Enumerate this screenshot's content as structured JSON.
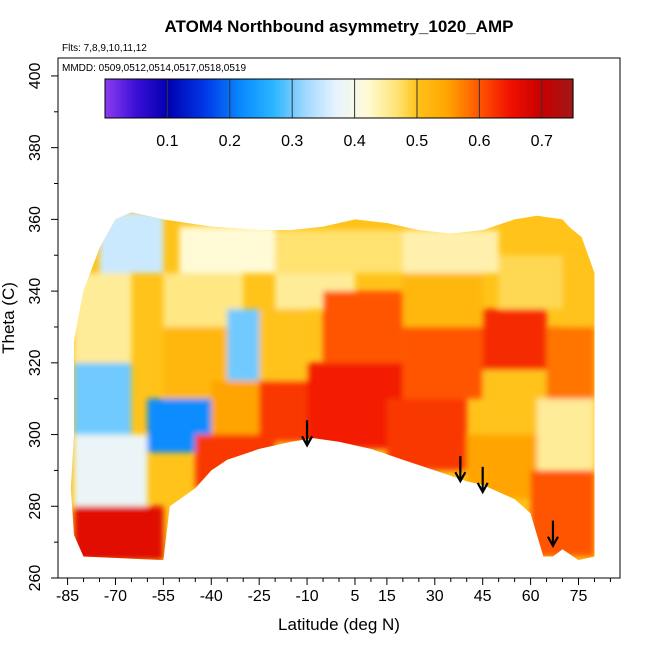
{
  "chart_data": {
    "type": "heatmap",
    "title": "ATOM4 Northbound asymmetry_1020_AMP",
    "flights_note": "Flts: 7,8,9,10,11,12",
    "dates_note": "MMDD: 0509,0512,0514,0517,0518,0519",
    "xlabel": "Latitude (deg N)",
    "ylabel": "Theta (C)",
    "xlim": [
      -88,
      88
    ],
    "ylim": [
      260,
      405
    ],
    "x_ticks": [
      -85,
      -70,
      -55,
      -40,
      -25,
      -10,
      5,
      15,
      30,
      45,
      60,
      75
    ],
    "x_tick_labels": [
      "-85",
      "-70",
      "-55",
      "-40",
      "-25",
      "-10",
      "5",
      "15",
      "30",
      "45",
      "60",
      "75"
    ],
    "y_ticks": [
      260,
      280,
      300,
      320,
      340,
      360,
      380,
      400
    ],
    "y_tick_labels": [
      "260",
      "280",
      "300",
      "320",
      "340",
      "360",
      "380",
      "400"
    ],
    "colorbar": {
      "range": [
        0,
        0.75
      ],
      "ticks": [
        0.1,
        0.2,
        0.3,
        0.4,
        0.5,
        0.6,
        0.7
      ],
      "tick_labels": [
        "0.1",
        "0.2",
        "0.3",
        "0.4",
        "0.5",
        "0.6",
        "0.7"
      ],
      "dividers": [
        0.1,
        0.2,
        0.3,
        0.4,
        0.5,
        0.6,
        0.7
      ],
      "stops": [
        {
          "v": 0.0,
          "color": "#8c3cf0"
        },
        {
          "v": 0.05,
          "color": "#3b0fd6"
        },
        {
          "v": 0.1,
          "color": "#0000b0"
        },
        {
          "v": 0.16,
          "color": "#0038e8"
        },
        {
          "v": 0.22,
          "color": "#0a8cff"
        },
        {
          "v": 0.27,
          "color": "#2ab5ff"
        },
        {
          "v": 0.32,
          "color": "#9fd8ff"
        },
        {
          "v": 0.37,
          "color": "#e6f4ff"
        },
        {
          "v": 0.42,
          "color": "#fffbd6"
        },
        {
          "v": 0.47,
          "color": "#ffe270"
        },
        {
          "v": 0.5,
          "color": "#ffc31a"
        },
        {
          "v": 0.55,
          "color": "#ffa400"
        },
        {
          "v": 0.6,
          "color": "#ff5500"
        },
        {
          "v": 0.65,
          "color": "#f01000"
        },
        {
          "v": 0.7,
          "color": "#c80000"
        },
        {
          "v": 0.75,
          "color": "#a01818"
        }
      ]
    },
    "domain_outline": {
      "top": [
        [
          -83,
          326
        ],
        [
          -80,
          340
        ],
        [
          -75,
          352
        ],
        [
          -70,
          360
        ],
        [
          -65,
          362
        ],
        [
          -55,
          360
        ],
        [
          -40,
          358
        ],
        [
          -25,
          357
        ],
        [
          -15,
          357
        ],
        [
          -5,
          358
        ],
        [
          5,
          360
        ],
        [
          15,
          359
        ],
        [
          25,
          357
        ],
        [
          35,
          356
        ],
        [
          45,
          357
        ],
        [
          55,
          360
        ],
        [
          62,
          361
        ],
        [
          70,
          360
        ],
        [
          72,
          358
        ],
        [
          76,
          355
        ],
        [
          80,
          345
        ]
      ],
      "bottom": [
        [
          -83,
          300
        ],
        [
          -84,
          285
        ],
        [
          -83,
          272
        ],
        [
          -80,
          266
        ],
        [
          -55,
          265
        ],
        [
          -53,
          280
        ],
        [
          -45,
          285
        ],
        [
          -40,
          290
        ],
        [
          -35,
          293
        ],
        [
          -25,
          296
        ],
        [
          -15,
          298
        ],
        [
          -8,
          299
        ],
        [
          0,
          298
        ],
        [
          10,
          296
        ],
        [
          20,
          293
        ],
        [
          30,
          290
        ],
        [
          40,
          287
        ],
        [
          45,
          286
        ],
        [
          55,
          282
        ],
        [
          60,
          278
        ],
        [
          62,
          272
        ],
        [
          64,
          266
        ],
        [
          67,
          266
        ],
        [
          70,
          268
        ],
        [
          75,
          265
        ],
        [
          80,
          266
        ]
      ]
    },
    "regions": [
      {
        "lat": [
          -83,
          -55
        ],
        "theta": [
          265,
          280
        ],
        "value": 0.67
      },
      {
        "lat": [
          -83,
          -60
        ],
        "theta": [
          280,
          300
        ],
        "value": 0.38
      },
      {
        "lat": [
          -83,
          -65
        ],
        "theta": [
          300,
          320
        ],
        "value": 0.3
      },
      {
        "lat": [
          -83,
          -65
        ],
        "theta": [
          320,
          345
        ],
        "value": 0.45
      },
      {
        "lat": [
          -75,
          -55
        ],
        "theta": [
          345,
          362
        ],
        "value": 0.35
      },
      {
        "lat": [
          -60,
          -40
        ],
        "theta": [
          295,
          310
        ],
        "value": 0.22
      },
      {
        "lat": [
          -55,
          -35
        ],
        "theta": [
          310,
          330
        ],
        "value": 0.52
      },
      {
        "lat": [
          -55,
          -30
        ],
        "theta": [
          330,
          345
        ],
        "value": 0.46
      },
      {
        "lat": [
          -50,
          -20
        ],
        "theta": [
          345,
          358
        ],
        "value": 0.42
      },
      {
        "lat": [
          -45,
          -20
        ],
        "theta": [
          285,
          300
        ],
        "value": 0.62
      },
      {
        "lat": [
          -40,
          -25
        ],
        "theta": [
          300,
          315
        ],
        "value": 0.55
      },
      {
        "lat": [
          -35,
          -20
        ],
        "theta": [
          315,
          335
        ],
        "value": 0.3
      },
      {
        "lat": [
          -25,
          -5
        ],
        "theta": [
          298,
          315
        ],
        "value": 0.62
      },
      {
        "lat": [
          -25,
          -10
        ],
        "theta": [
          315,
          335
        ],
        "value": 0.5
      },
      {
        "lat": [
          -20,
          5
        ],
        "theta": [
          335,
          345
        ],
        "value": 0.45
      },
      {
        "lat": [
          -20,
          20
        ],
        "theta": [
          345,
          357
        ],
        "value": 0.47
      },
      {
        "lat": [
          -10,
          20
        ],
        "theta": [
          296,
          320
        ],
        "value": 0.64
      },
      {
        "lat": [
          -5,
          20
        ],
        "theta": [
          320,
          340
        ],
        "value": 0.6
      },
      {
        "lat": [
          15,
          40
        ],
        "theta": [
          290,
          310
        ],
        "value": 0.62
      },
      {
        "lat": [
          20,
          45
        ],
        "theta": [
          310,
          330
        ],
        "value": 0.6
      },
      {
        "lat": [
          20,
          45
        ],
        "theta": [
          330,
          345
        ],
        "value": 0.52
      },
      {
        "lat": [
          20,
          50
        ],
        "theta": [
          345,
          357
        ],
        "value": 0.44
      },
      {
        "lat": [
          40,
          62
        ],
        "theta": [
          282,
          300
        ],
        "value": 0.55
      },
      {
        "lat": [
          45,
          65
        ],
        "theta": [
          300,
          318
        ],
        "value": 0.5
      },
      {
        "lat": [
          45,
          65
        ],
        "theta": [
          318,
          335
        ],
        "value": 0.63
      },
      {
        "lat": [
          50,
          75
        ],
        "theta": [
          335,
          350
        ],
        "value": 0.48
      },
      {
        "lat": [
          60,
          80
        ],
        "theta": [
          266,
          290
        ],
        "value": 0.6
      },
      {
        "lat": [
          62,
          80
        ],
        "theta": [
          290,
          310
        ],
        "value": 0.45
      },
      {
        "lat": [
          65,
          80
        ],
        "theta": [
          310,
          330
        ],
        "value": 0.58
      },
      {
        "lat": [
          70,
          80
        ],
        "theta": [
          330,
          350
        ],
        "value": 0.5
      }
    ],
    "arrows": [
      {
        "lat": -10,
        "theta_top": 304,
        "theta_tip": 297
      },
      {
        "lat": 38,
        "theta_top": 294,
        "theta_tip": 287
      },
      {
        "lat": 45,
        "theta_top": 291,
        "theta_tip": 284
      },
      {
        "lat": 67,
        "theta_top": 276,
        "theta_tip": 269
      }
    ]
  }
}
